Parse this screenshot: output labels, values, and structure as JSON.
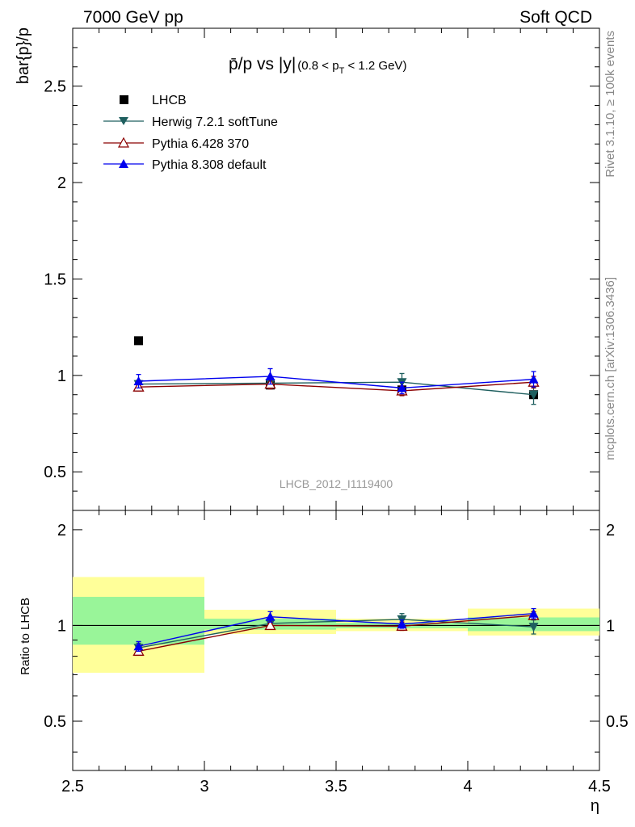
{
  "header": {
    "left": "7000 GeV pp",
    "right": "Soft QCD"
  },
  "side_text": {
    "rivet": "Rivet 3.1.10, ≥ 100k events",
    "mcplots": "mcplots.cern.ch [arXiv:1306.3436]"
  },
  "colors": {
    "data": "#000000",
    "herwig": "#1f5f5f",
    "pythia6": "#8b0000",
    "pythia8": "#0000ee",
    "band_inner": "#99f599",
    "band_outer": "#ffff99",
    "watermark": "#999999"
  },
  "chart_data": {
    "type": "line",
    "title_main": "p̄/p vs |y|",
    "title_sub": "(0.8 < p",
    "title_sub_index": "T",
    "title_sub_end": " < 1.2 GeV)",
    "watermark": "LHCB_2012_I1119400",
    "ylabel": "bar{p}/p",
    "xlabel": "η",
    "xlim": [
      2.5,
      4.5
    ],
    "ylim": [
      0.3,
      2.8
    ],
    "x_ticks": [
      "2.5",
      "3",
      "3.5",
      "4",
      "4.5"
    ],
    "x_tick_values": [
      2.5,
      3,
      3.5,
      4,
      4.5
    ],
    "y_ticks": [
      "0.5",
      "1",
      "1.5",
      "2",
      "2.5"
    ],
    "y_tick_values": [
      0.5,
      1,
      1.5,
      2,
      2.5
    ],
    "x": [
      2.75,
      3.25,
      3.75,
      4.25
    ],
    "data": {
      "name": "LHCB",
      "values": [
        1.18,
        0.95,
        0.925,
        0.9
      ]
    },
    "series": [
      {
        "key": "herwig",
        "name": "Herwig 7.2.1 softTune",
        "marker": "triangle-down-filled",
        "values": [
          0.955,
          0.96,
          0.965,
          0.9
        ],
        "errors": [
          0.02,
          0.03,
          0.045,
          0.05
        ]
      },
      {
        "key": "pythia6",
        "name": "Pythia 6.428 370",
        "marker": "triangle-up-open",
        "values": [
          0.94,
          0.955,
          0.92,
          0.965
        ],
        "errors": [
          0.02,
          0.025,
          0.025,
          0.03
        ]
      },
      {
        "key": "pythia8",
        "name": "Pythia 8.308 default",
        "marker": "triangle-up-filled",
        "values": [
          0.97,
          0.995,
          0.935,
          0.98
        ],
        "errors": [
          0.035,
          0.04,
          0.03,
          0.04
        ]
      }
    ],
    "ratio": {
      "ylabel": "Ratio to LHCB",
      "ylim": [
        0.35,
        2.3
      ],
      "y_ticks": [
        "0.5",
        "1",
        "2"
      ],
      "y_tick_values": [
        0.5,
        1,
        2
      ],
      "bands": [
        {
          "x0": 2.5,
          "x1": 3.0,
          "inner": [
            0.87,
            1.23
          ],
          "outer": [
            0.71,
            1.42
          ]
        },
        {
          "x0": 3.0,
          "x1": 3.5,
          "inner": [
            0.97,
            1.05
          ],
          "outer": [
            0.94,
            1.12
          ]
        },
        {
          "x0": 3.5,
          "x1": 4.0,
          "inner": [
            0.98,
            1.02
          ],
          "outer": [
            0.96,
            1.05
          ]
        },
        {
          "x0": 4.0,
          "x1": 4.5,
          "inner": [
            0.96,
            1.06
          ],
          "outer": [
            0.93,
            1.13
          ]
        }
      ],
      "series": [
        {
          "key": "herwig",
          "values": [
            0.85,
            1.015,
            1.045,
            0.99
          ],
          "errors": [
            0.03,
            0.03,
            0.045,
            0.05
          ]
        },
        {
          "key": "pythia6",
          "values": [
            0.83,
            1.0,
            0.995,
            1.075
          ],
          "errors": [
            0.02,
            0.025,
            0.03,
            0.03
          ]
        },
        {
          "key": "pythia8",
          "values": [
            0.86,
            1.065,
            1.01,
            1.09
          ],
          "errors": [
            0.03,
            0.04,
            0.03,
            0.04
          ]
        }
      ]
    }
  }
}
